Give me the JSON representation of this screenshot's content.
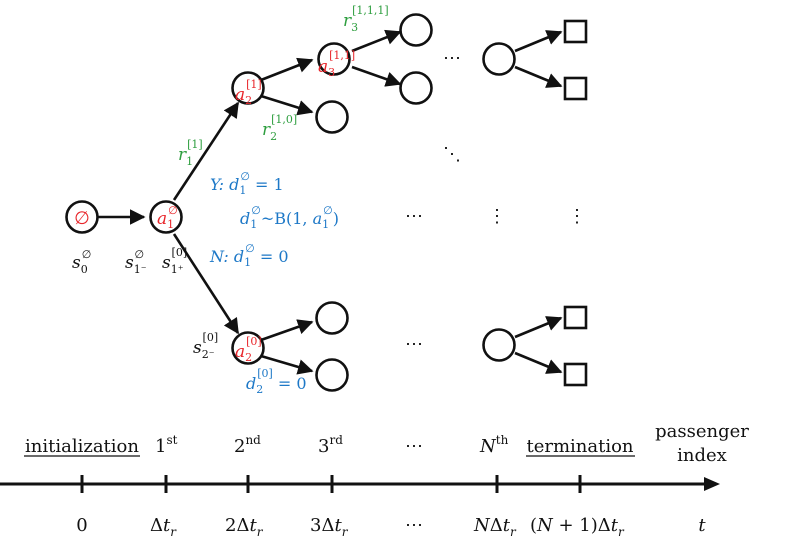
{
  "nodes": {
    "root": "∅",
    "a1": {
      "base": "a",
      "sub": "1",
      "sup": "∅"
    },
    "a2_1": {
      "base": "a",
      "sub": "2",
      "sup": "[1]"
    },
    "a3_11": {
      "base": "a",
      "sub": "3",
      "sup": "[1,1]"
    },
    "a2_0": {
      "base": "a",
      "sub": "2",
      "sup": "[0]"
    }
  },
  "state_labels": {
    "s0": {
      "base": "s",
      "sub": "0",
      "sup": "∅"
    },
    "s1minus": {
      "base": "s",
      "sub": "1⁻",
      "sup": "∅"
    },
    "s1plus": {
      "base": "s",
      "sub": "1⁺",
      "sup": "[0]"
    },
    "s2minus": {
      "base": "s",
      "sub": "2⁻",
      "sup": "[0]"
    }
  },
  "reward_labels": {
    "r1": {
      "base": "r",
      "sub": "1",
      "sup": "[1]"
    },
    "r2": {
      "base": "r",
      "sub": "2",
      "sup": "[1,0]"
    },
    "r3": {
      "base": "r",
      "sub": "3",
      "sup": "[1,1,1]"
    }
  },
  "decision_labels": {
    "yes": {
      "prefix": "Y: ",
      "base": "d",
      "sub": "1",
      "sup": "∅",
      "rest": " = 1"
    },
    "dist": {
      "base": "d",
      "sub": "1",
      "sup": "∅",
      "mid": "~B(1, ",
      "base2": "a",
      "sub2": "1",
      "sup2": "∅",
      "end": ")"
    },
    "no": {
      "prefix": "N: ",
      "base": "d",
      "sub": "1",
      "sup": "∅",
      "rest": " = 0"
    },
    "d2": {
      "base": "d",
      "sub": "2",
      "sup": "[0]",
      "rest": " = 0"
    }
  },
  "ellipses": {
    "top": "⋯",
    "diag": "⋱",
    "mid": "⋯",
    "vdots1": "⋮",
    "vdots2": "⋮",
    "bottom": "⋯"
  },
  "timeline": {
    "phases": {
      "initialization": "initialization",
      "first": {
        "base": "1",
        "sup": "st"
      },
      "second": {
        "base": "2",
        "sup": "nd"
      },
      "third": {
        "base": "3",
        "sup": "rd"
      },
      "dots": "⋯",
      "nth": {
        "base": "N",
        "sup": "th"
      },
      "termination": "termination",
      "axis_title_line1": "passenger",
      "axis_title_line2": "index"
    },
    "ticks": {
      "t0": "0",
      "t1": {
        "delta": "Δ",
        "base": "t",
        "sub": "r"
      },
      "t2": {
        "coef": "2",
        "delta": "Δ",
        "base": "t",
        "sub": "r"
      },
      "t3": {
        "coef": "3",
        "delta": "Δ",
        "base": "t",
        "sub": "r"
      },
      "tdots": "⋯",
      "tN": {
        "coef": "N",
        "delta": "Δ",
        "base": "t",
        "sub": "r"
      },
      "tN1": {
        "pre": "(",
        "coef": "N",
        "mid": " + 1)",
        "delta": "Δ",
        "base": "t",
        "sub": "r"
      },
      "axis_var": "t"
    }
  },
  "colors": {
    "red": "#e8262b",
    "green": "#2e9e3f",
    "blue": "#1d78c7",
    "black": "#111111"
  }
}
